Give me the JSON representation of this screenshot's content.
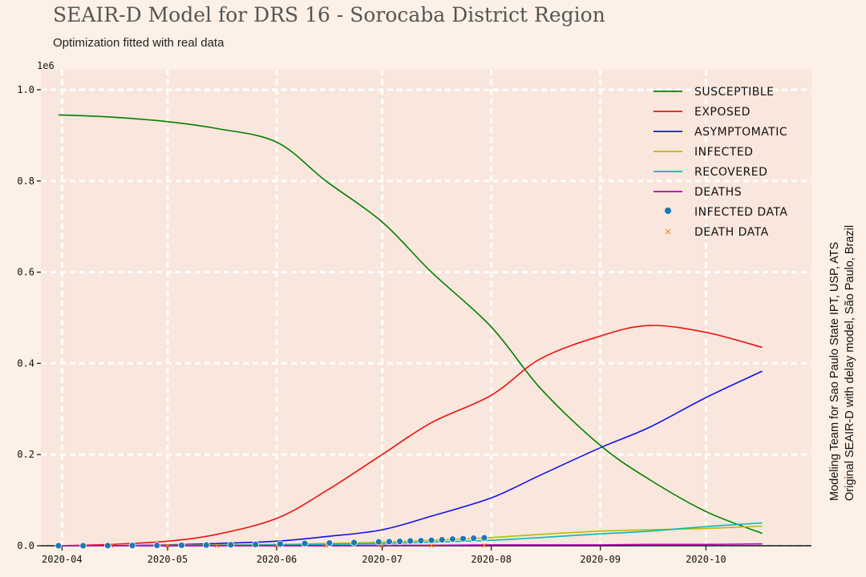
{
  "chart_data": {
    "type": "line",
    "title": "SEAIR-D Model for DRS 16 - Sorocaba District Region",
    "subtitle": "Optimization fitted with real data",
    "side_note": [
      "Modeling Team for Sao Paulo State IPT, USP, ATS",
      "Original SEAIR-D with delay model, São Paulo, Brazil"
    ],
    "y_multiplier_label": "1e6",
    "ylim": [
      0,
      1.0
    ],
    "y_ticks": [
      0.0,
      0.2,
      0.4,
      0.6,
      0.8,
      1.0
    ],
    "y_tick_labels": [
      "0.0",
      "0.2",
      "0.4",
      "0.6",
      "0.8",
      "1.0"
    ],
    "x_ticks": [
      "2020-04-01",
      "2020-05-01",
      "2020-06-01",
      "2020-07-01",
      "2020-08-01",
      "2020-09-01",
      "2020-10-01"
    ],
    "x_tick_labels": [
      "2020-04",
      "2020-05",
      "2020-06",
      "2020-07",
      "2020-08",
      "2020-09",
      "2020-10"
    ],
    "xlim": [
      "2020-03-26",
      "2020-10-31"
    ],
    "grid": true,
    "legend_position": "top-right",
    "x": [
      "2020-03-31",
      "2020-04-15",
      "2020-05-01",
      "2020-05-15",
      "2020-06-01",
      "2020-06-15",
      "2020-07-01",
      "2020-07-15",
      "2020-08-01",
      "2020-08-15",
      "2020-09-01",
      "2020-09-15",
      "2020-10-01",
      "2020-10-17"
    ],
    "series": [
      {
        "name": "Susceptible",
        "color": "#008000",
        "values": [
          0.945,
          0.94,
          0.93,
          0.915,
          0.885,
          0.8,
          0.71,
          0.6,
          0.48,
          0.345,
          0.22,
          0.145,
          0.075,
          0.027
        ]
      },
      {
        "name": "Exposed",
        "color": "#ee1111",
        "values": [
          0.0,
          0.003,
          0.01,
          0.025,
          0.06,
          0.12,
          0.2,
          0.27,
          0.33,
          0.41,
          0.46,
          0.483,
          0.468,
          0.435
        ]
      },
      {
        "name": "Asymptomatic",
        "color": "#1111ee",
        "values": [
          0.0,
          0.0,
          0.002,
          0.005,
          0.01,
          0.02,
          0.035,
          0.065,
          0.105,
          0.155,
          0.215,
          0.26,
          0.325,
          0.383
        ]
      },
      {
        "name": "Infected",
        "color": "#bbbb00",
        "values": [
          0.0,
          0.0,
          0.001,
          0.002,
          0.003,
          0.005,
          0.008,
          0.012,
          0.018,
          0.025,
          0.032,
          0.035,
          0.038,
          0.043
        ]
      },
      {
        "name": "Recovered",
        "color": "#00bbbb",
        "values": [
          0.0,
          0.0,
          0.0,
          0.001,
          0.002,
          0.003,
          0.005,
          0.008,
          0.012,
          0.018,
          0.026,
          0.032,
          0.042,
          0.05
        ]
      },
      {
        "name": "Deaths",
        "color": "#bb00bb",
        "values": [
          0.0,
          0.0,
          0.0,
          0.0,
          0.0,
          0.0,
          0.001,
          0.001,
          0.002,
          0.002,
          0.002,
          0.003,
          0.003,
          0.004
        ]
      }
    ],
    "infected_data": {
      "name": "Infected Data",
      "color": "#1f77b4",
      "x": [
        "2020-03-31",
        "2020-04-07",
        "2020-04-14",
        "2020-04-21",
        "2020-04-28",
        "2020-05-05",
        "2020-05-12",
        "2020-05-19",
        "2020-05-26",
        "2020-06-02",
        "2020-06-09",
        "2020-06-16",
        "2020-06-23",
        "2020-06-30",
        "2020-07-03",
        "2020-07-06",
        "2020-07-09",
        "2020-07-12",
        "2020-07-15",
        "2020-07-18",
        "2020-07-21",
        "2020-07-24",
        "2020-07-27",
        "2020-07-30"
      ],
      "values": [
        0.0,
        0.0001,
        0.0003,
        0.0005,
        0.0008,
        0.001,
        0.0015,
        0.002,
        0.0028,
        0.0038,
        0.005,
        0.006,
        0.007,
        0.0085,
        0.009,
        0.0095,
        0.0105,
        0.011,
        0.012,
        0.013,
        0.0145,
        0.0155,
        0.0165,
        0.0175
      ]
    },
    "death_data": {
      "name": "Death Data",
      "color": "#ff7f0e",
      "x": [
        "2020-04-15",
        "2020-05-01",
        "2020-05-15",
        "2020-06-01",
        "2020-06-15",
        "2020-07-01",
        "2020-07-15",
        "2020-07-30"
      ],
      "values": [
        0.0,
        0.0,
        0.0,
        0.0001,
        0.0001,
        0.0002,
        0.0003,
        0.0004
      ]
    }
  }
}
